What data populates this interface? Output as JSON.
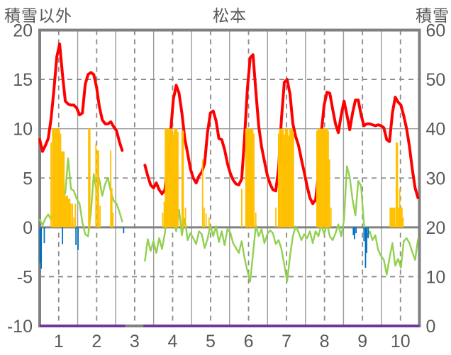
{
  "header": {
    "left_axis_title": "積雪以外",
    "chart_title": "松本",
    "right_axis_title": "積雪"
  },
  "chart_data": {
    "type": "line",
    "title": "松本",
    "grid": true,
    "legend": "none",
    "colors": {
      "red_line": "#FF0000",
      "green_line": "#92D050",
      "orange_bars": "#FFC000",
      "blue_bars": "#0070C0",
      "purple_line": "#7030A0",
      "grid_solid": "#9b9b9b",
      "grid_dashed": "#8a8a8a",
      "frame": "#808080",
      "zero_line": "#808080",
      "text": "#595959"
    },
    "left_axis": {
      "title": "積雪以外",
      "min": -10,
      "max": 20,
      "ticks": [
        {
          "label": "20",
          "value": 20
        },
        {
          "label": "15",
          "value": 15
        },
        {
          "label": "10",
          "value": 10
        },
        {
          "label": "5",
          "value": 5
        },
        {
          "label": "0",
          "value": 0
        },
        {
          "label": "-5",
          "value": -5
        },
        {
          "label": "-10",
          "value": -10
        }
      ]
    },
    "right_axis": {
      "title": "積雪",
      "min": 0,
      "max": 60,
      "ticks": [
        {
          "label": "60",
          "value": 60
        },
        {
          "label": "50",
          "value": 50
        },
        {
          "label": "40",
          "value": 40
        },
        {
          "label": "30",
          "value": 30
        },
        {
          "label": "20",
          "value": 20
        },
        {
          "label": "10",
          "value": 10
        },
        {
          "label": "0",
          "value": 0
        }
      ]
    },
    "x_axis": {
      "min": 1,
      "max": 11,
      "ticks": [
        {
          "label": "1",
          "x": 1.5
        },
        {
          "label": "2",
          "x": 2.5
        },
        {
          "label": "3",
          "x": 3.5
        },
        {
          "label": "4",
          "x": 4.5
        },
        {
          "label": "5",
          "x": 5.5
        },
        {
          "label": "6",
          "x": 6.5
        },
        {
          "label": "7",
          "x": 7.5
        },
        {
          "label": "8",
          "x": 8.5
        },
        {
          "label": "9",
          "x": 9.5
        },
        {
          "label": "10",
          "x": 10.5
        }
      ],
      "solid_gridlines": [
        2,
        3,
        4,
        5,
        6,
        7,
        8,
        9,
        10
      ],
      "dashed_gridlines": [
        1.5,
        2.5,
        3.5,
        4.5,
        5.5,
        6.5,
        7.5,
        8.5,
        9.5,
        10.5
      ]
    },
    "h_gridlines": {
      "dashed_left_values": [
        15,
        5,
        -5
      ],
      "solid_left_values": [
        10
      ],
      "zero_left_value": 0
    },
    "series": [
      {
        "name": "red-line",
        "type": "line",
        "axis": "left",
        "color": "#FF0000",
        "width": 4,
        "x_start": 1.0,
        "x_step": 0.0749,
        "values": [
          8.9,
          7.7,
          8.3,
          9.0,
          11.0,
          14.0,
          17.3,
          18.6,
          15.5,
          12.8,
          12.5,
          12.4,
          12.4,
          12.1,
          11.4,
          11.6,
          14.5,
          15.5,
          15.7,
          15.5,
          14.2,
          12.2,
          10.9,
          10.5,
          10.5,
          10.7,
          10.2,
          9.8,
          8.7,
          7.8,
          null,
          null,
          null,
          null,
          null,
          null,
          null,
          6.3,
          5.2,
          4.3,
          4.0,
          4.5,
          3.8,
          3.4,
          3.8,
          6.2,
          9.6,
          13.0,
          14.4,
          13.6,
          11.6,
          9.0,
          7.5,
          5.9,
          5.0,
          4.5,
          5.2,
          5.6,
          6.5,
          9.6,
          11.6,
          11.8,
          10.8,
          9.0,
          8.9,
          7.9,
          6.5,
          5.5,
          4.8,
          4.4,
          4.3,
          4.9,
          9.0,
          14.0,
          17.2,
          17.5,
          13.8,
          10.3,
          8.2,
          6.7,
          5.3,
          4.4,
          3.8,
          3.7,
          6.0,
          11.0,
          14.7,
          15.0,
          13.5,
          10.5,
          9.2,
          8.3,
          6.9,
          5.6,
          4.2,
          3.0,
          2.4,
          2.8,
          5.5,
          9.6,
          12.4,
          13.7,
          13.6,
          12.0,
          10.5,
          9.6,
          11.4,
          12.8,
          11.4,
          9.9,
          11.6,
          12.9,
          12.9,
          11.4,
          10.3,
          10.5,
          10.5,
          10.4,
          10.3,
          10.4,
          10.3,
          10.1,
          8.9,
          8.7,
          11.6,
          13.2,
          12.7,
          12.4,
          11.3,
          10.0,
          8.2,
          5.9,
          4.0,
          3.0
        ]
      },
      {
        "name": "green-line",
        "type": "line",
        "axis": "left",
        "color": "#92D050",
        "width": 2.4,
        "x_start": 1.0,
        "x_step": 0.0749,
        "values": [
          0.8,
          0.2,
          0.9,
          1.3,
          0.8,
          1.6,
          0.9,
          1.5,
          2.9,
          3.5,
          7.0,
          3.9,
          3.7,
          2.9,
          2.4,
          0.5,
          -0.7,
          -0.9,
          1.5,
          5.4,
          3.6,
          4.8,
          3.2,
          4.4,
          5.0,
          3.6,
          2.7,
          2.4,
          1.6,
          0.6,
          null,
          null,
          null,
          null,
          null,
          null,
          null,
          -3.4,
          -1.2,
          -2.4,
          -1.4,
          -2.6,
          -1.1,
          -2.2,
          -0.6,
          1.9,
          2.6,
          0.7,
          -0.4,
          1.8,
          -0.8,
          0.9,
          -1.3,
          -0.6,
          -1.1,
          -1.7,
          -0.4,
          -0.7,
          -2.1,
          -1.2,
          0.2,
          -0.9,
          0.1,
          -1.5,
          -0.4,
          -1.8,
          -0.2,
          -0.5,
          -1.6,
          -2.1,
          -2.6,
          -1.4,
          -3.1,
          -4.4,
          -5.5,
          -2.7,
          0.2,
          -0.9,
          -0.2,
          -1.6,
          -0.7,
          -0.3,
          -0.6,
          -1.7,
          -1.3,
          -2.2,
          -3.8,
          -5.5,
          -2.9,
          -0.9,
          0.1,
          -0.5,
          -1.3,
          -0.7,
          -1.1,
          -0.4,
          -1.6,
          -0.4,
          -0.9,
          0.3,
          -0.7,
          0.4,
          -0.9,
          -1.3,
          -0.6,
          0.3,
          -0.9,
          0.8,
          6.2,
          5.1,
          2.8,
          1.2,
          4.7,
          4.2,
          0.4,
          -0.9,
          -0.4,
          -1.3,
          -0.8,
          -2.3,
          -2.9,
          -3.3,
          -4.8,
          -3.1,
          -1.6,
          -3.9,
          -3.2,
          -4.1,
          -1.4,
          -1.1,
          -1.6,
          -2.5,
          -3.3,
          -1.2
        ]
      },
      {
        "name": "orange-bars",
        "type": "bar",
        "axis": "left",
        "color": "#FFC000",
        "bar_width": 1.8,
        "points": [
          [
            1.3,
            8.6
          ],
          [
            1.34,
            10
          ],
          [
            1.37,
            10
          ],
          [
            1.4,
            10
          ],
          [
            1.43,
            10
          ],
          [
            1.46,
            10
          ],
          [
            1.49,
            10
          ],
          [
            1.52,
            10
          ],
          [
            1.55,
            9.5
          ],
          [
            1.58,
            7.7
          ],
          [
            1.61,
            7.7
          ],
          [
            1.64,
            7.7
          ],
          [
            1.67,
            3.2
          ],
          [
            1.7,
            3.2
          ],
          [
            1.73,
            3.2
          ],
          [
            1.76,
            2.9
          ],
          [
            1.79,
            2.9
          ],
          [
            1.82,
            2.4
          ],
          [
            1.86,
            2.4
          ],
          [
            1.9,
            1.0
          ],
          [
            1.94,
            2.4
          ],
          [
            2.29,
            10
          ],
          [
            2.32,
            10
          ],
          [
            2.48,
            8.5
          ],
          [
            2.52,
            7.8
          ],
          [
            2.55,
            7.8
          ],
          [
            2.59,
            2.2
          ],
          [
            2.87,
            7.8
          ],
          [
            2.9,
            4.0
          ],
          [
            2.93,
            1.5
          ],
          [
            4.24,
            1.5
          ],
          [
            4.28,
            2.6
          ],
          [
            4.31,
            10
          ],
          [
            4.34,
            10
          ],
          [
            4.37,
            10
          ],
          [
            4.4,
            10
          ],
          [
            4.43,
            10
          ],
          [
            4.46,
            10
          ],
          [
            4.49,
            10
          ],
          [
            4.52,
            9.4
          ],
          [
            4.55,
            10
          ],
          [
            4.58,
            10
          ],
          [
            4.61,
            10
          ],
          [
            4.64,
            9.7
          ],
          [
            4.75,
            9.8
          ],
          [
            4.78,
            9.8
          ],
          [
            4.84,
            2.0
          ],
          [
            5.29,
            6.9
          ],
          [
            5.33,
            2.0
          ],
          [
            5.38,
            1.4
          ],
          [
            5.46,
            1.0
          ],
          [
            6.32,
            3.9
          ],
          [
            6.43,
            10
          ],
          [
            6.46,
            10
          ],
          [
            6.49,
            10
          ],
          [
            6.52,
            10
          ],
          [
            6.55,
            10
          ],
          [
            6.58,
            10
          ],
          [
            6.61,
            10
          ],
          [
            6.64,
            9.5
          ],
          [
            6.69,
            1.5
          ],
          [
            7.22,
            2.0
          ],
          [
            7.29,
            9.5
          ],
          [
            7.32,
            10
          ],
          [
            7.35,
            10
          ],
          [
            7.38,
            10
          ],
          [
            7.41,
            10
          ],
          [
            7.44,
            9.4
          ],
          [
            7.47,
            10
          ],
          [
            7.5,
            10
          ],
          [
            7.53,
            10
          ],
          [
            7.56,
            9.3
          ],
          [
            7.59,
            10
          ],
          [
            7.62,
            10
          ],
          [
            7.65,
            10
          ],
          [
            7.68,
            9.7
          ],
          [
            8.3,
            9.8
          ],
          [
            8.33,
            10
          ],
          [
            8.36,
            10
          ],
          [
            8.39,
            10
          ],
          [
            8.42,
            10
          ],
          [
            8.45,
            10
          ],
          [
            8.48,
            10
          ],
          [
            8.51,
            10
          ],
          [
            8.54,
            10
          ],
          [
            8.57,
            10
          ],
          [
            8.6,
            9.8
          ],
          [
            8.63,
            6.9
          ],
          [
            8.67,
            2.0
          ],
          [
            10.23,
            2.0
          ],
          [
            10.26,
            2.0
          ],
          [
            10.29,
            2.0
          ],
          [
            10.32,
            2.0
          ],
          [
            10.35,
            2.0
          ],
          [
            10.39,
            8.6
          ],
          [
            10.42,
            8.6
          ],
          [
            10.45,
            2.0
          ],
          [
            10.48,
            3.9
          ],
          [
            10.51,
            2.0
          ],
          [
            10.54,
            2.0
          ],
          [
            10.57,
            1.0
          ]
        ]
      },
      {
        "name": "blue-bars",
        "type": "bar",
        "axis": "left",
        "color": "#0070C0",
        "bar_width": 1.8,
        "points": [
          [
            1.01,
            -3.6
          ],
          [
            1.04,
            -4.2
          ],
          [
            1.12,
            -1.6
          ],
          [
            1.6,
            -1.7
          ],
          [
            1.955,
            -1.8
          ],
          [
            2.01,
            -2.3
          ],
          [
            3.21,
            -0.6
          ],
          [
            9.26,
            -0.8
          ],
          [
            9.29,
            -1.2
          ],
          [
            9.33,
            -0.6
          ],
          [
            9.54,
            -1.4
          ],
          [
            9.58,
            -4.1
          ],
          [
            9.61,
            -2.6
          ],
          [
            9.65,
            -1.1
          ]
        ]
      },
      {
        "name": "purple-line",
        "type": "segments",
        "axis": "right",
        "color": "#7030A0",
        "width": 3.5,
        "value": 0,
        "segments": [
          [
            1.0,
            3.25
          ],
          [
            3.73,
            11.0
          ]
        ]
      }
    ]
  }
}
